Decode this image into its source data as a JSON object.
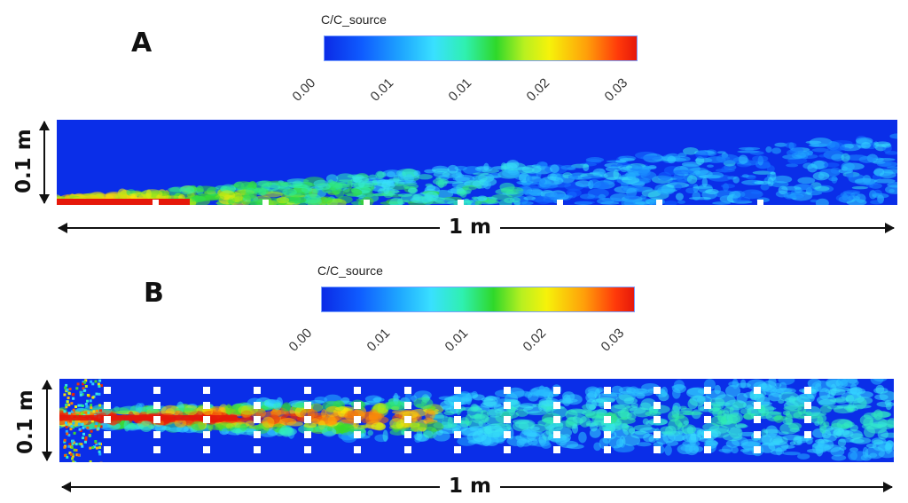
{
  "panel_a": {
    "label": "A",
    "colorbar": {
      "title": "C/C_source",
      "ticks": [
        "0.00",
        "0.01",
        "0.01",
        "0.02",
        "0.03"
      ]
    },
    "width_label": "1 m",
    "height_label": "0.1 m"
  },
  "panel_b": {
    "label": "B",
    "colorbar": {
      "title": "C/C_source",
      "ticks": [
        "0.00",
        "0.01",
        "0.01",
        "0.02",
        "0.03"
      ]
    },
    "width_label": "1 m",
    "height_label": "0.1 m"
  },
  "colors": {
    "background_field": "#0a2ee8",
    "low": "#0b2be6",
    "mid": "#2fd82a",
    "high": "#e6180a"
  }
}
